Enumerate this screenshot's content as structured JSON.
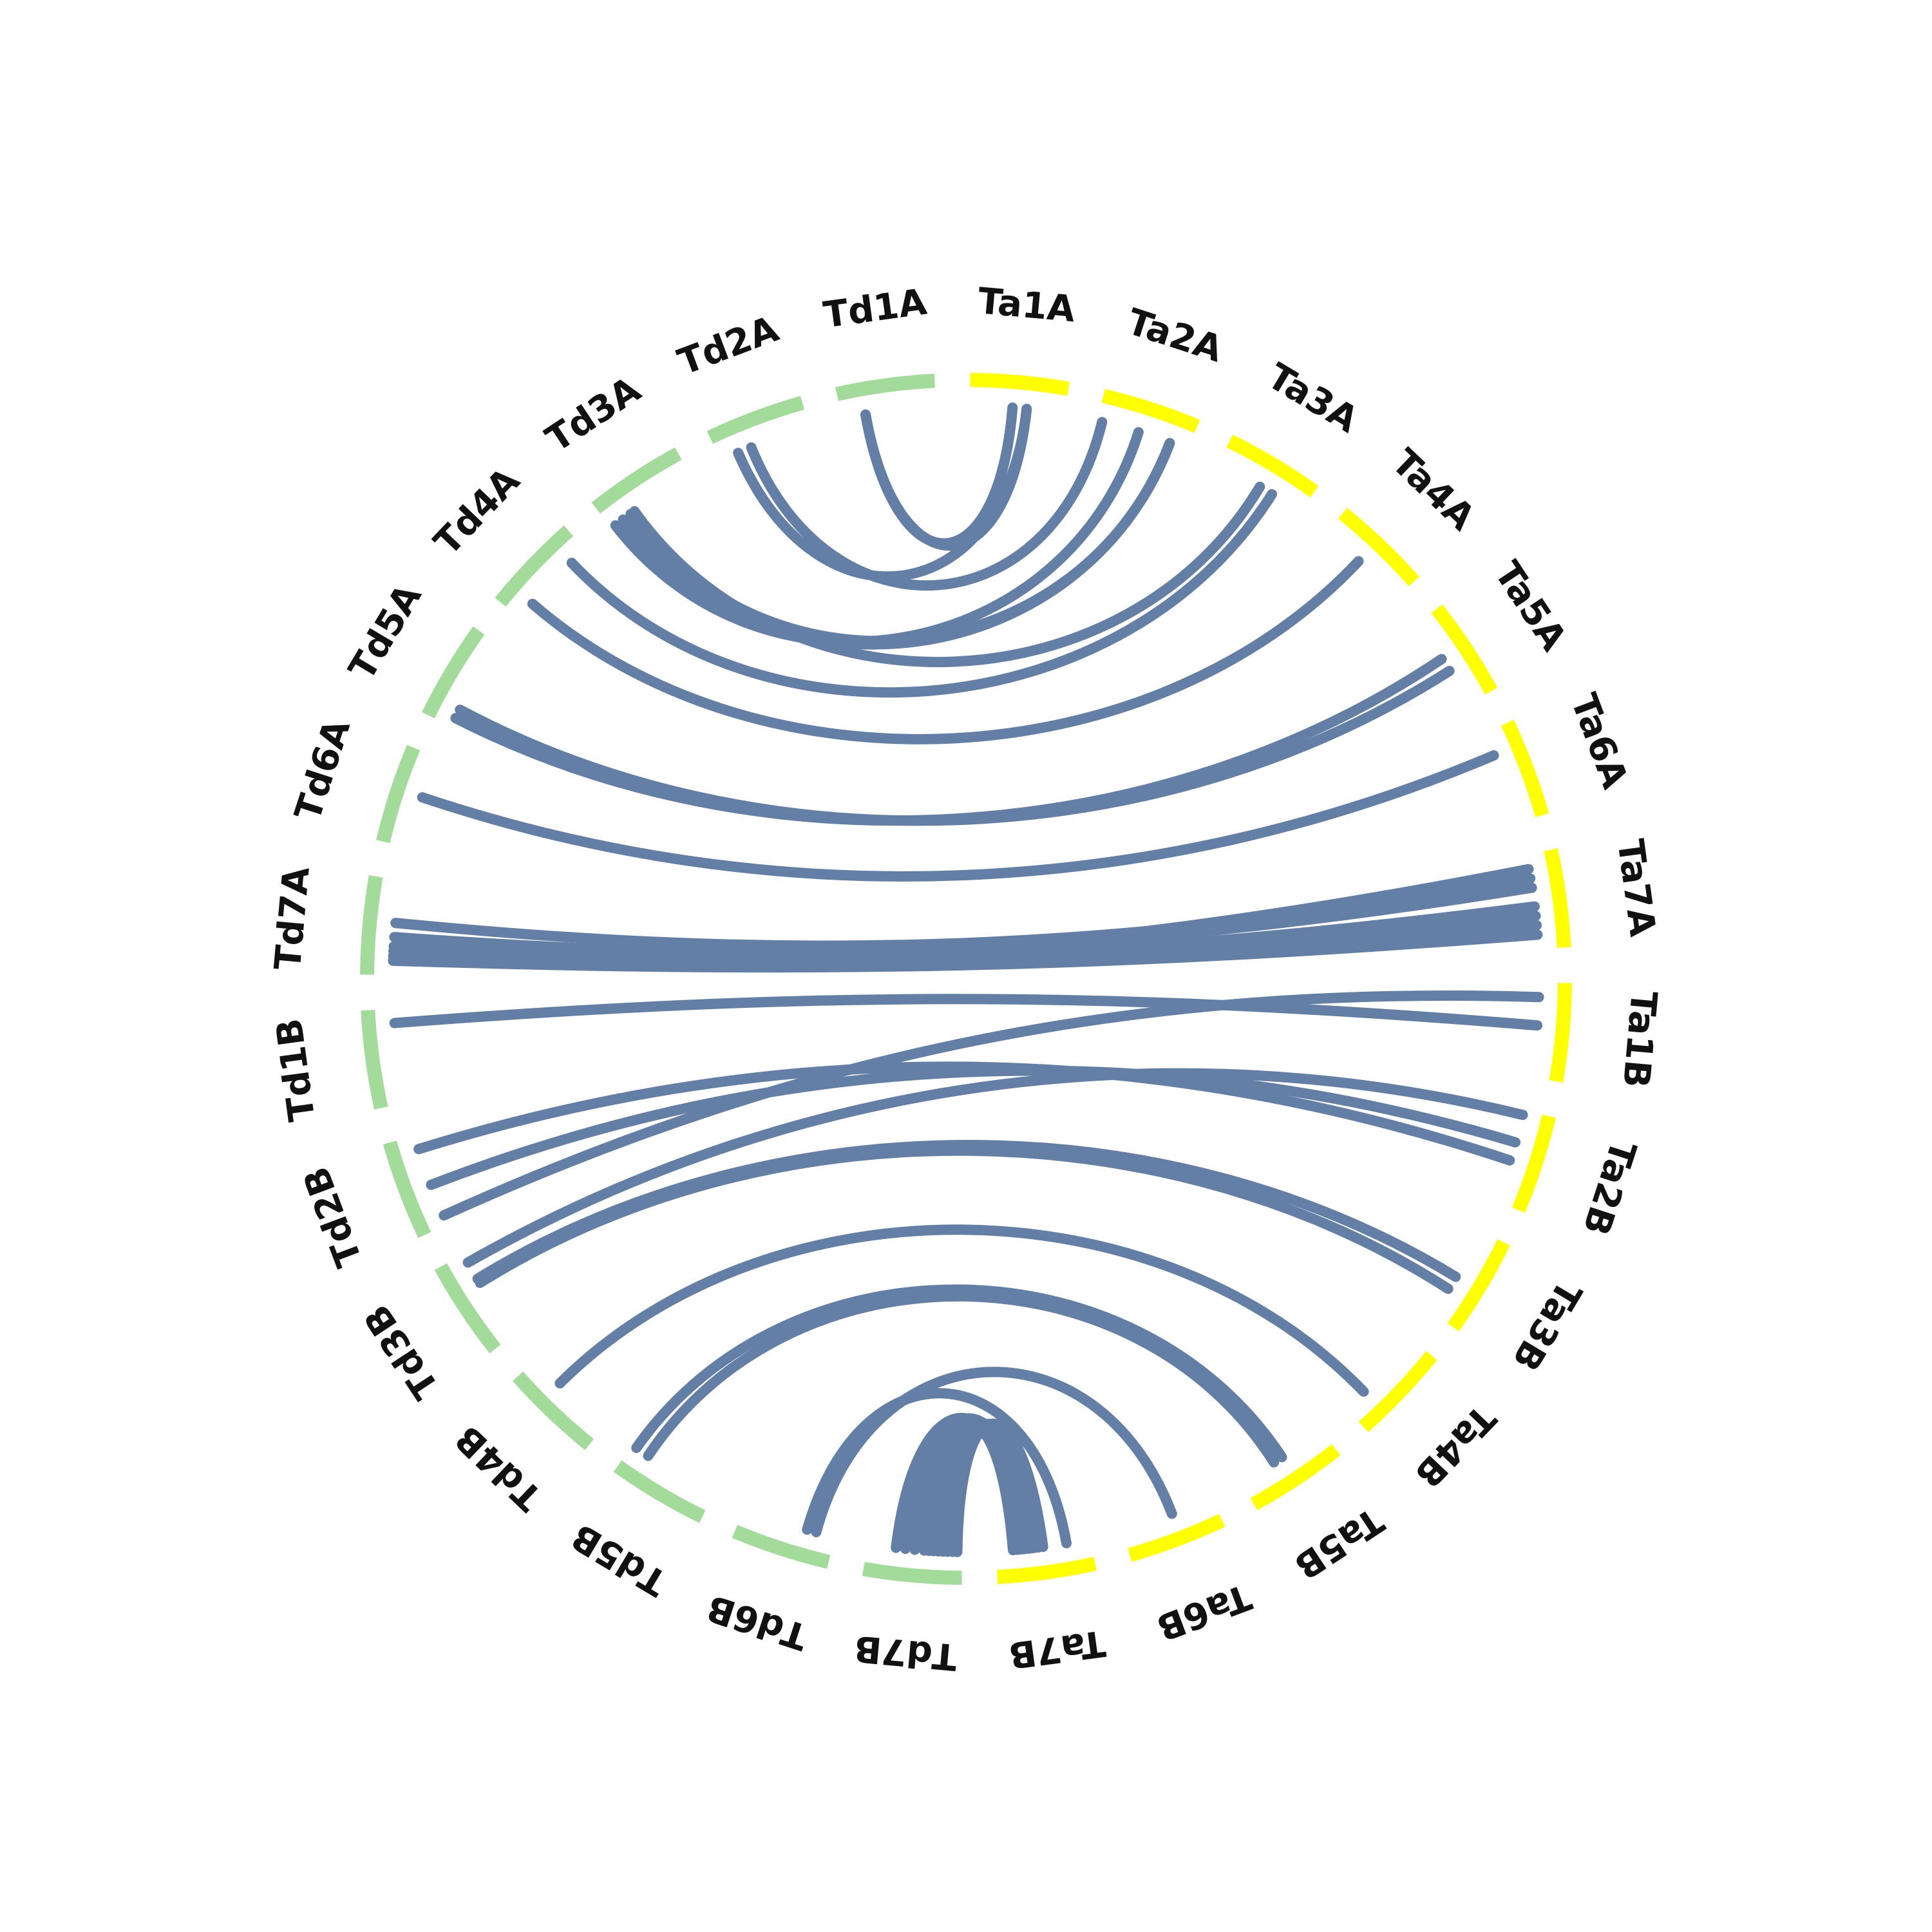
{
  "chart_data": {
    "type": "chord",
    "title": "",
    "colors": {
      "Td": "#a3db9a",
      "Ta": "#ffff00",
      "link": "#647fa6"
    },
    "chromosomes": [
      {
        "id": "Ta1A",
        "label": "Ta1A",
        "group": "Ta"
      },
      {
        "id": "Ta2A",
        "label": "Ta2A",
        "group": "Ta"
      },
      {
        "id": "Ta3A",
        "label": "Ta3A",
        "group": "Ta"
      },
      {
        "id": "Ta4A",
        "label": "Ta4A",
        "group": "Ta"
      },
      {
        "id": "Ta5A",
        "label": "Ta5A",
        "group": "Ta"
      },
      {
        "id": "Ta6A",
        "label": "Ta6A",
        "group": "Ta"
      },
      {
        "id": "Ta7A",
        "label": "Ta7A",
        "group": "Ta"
      },
      {
        "id": "Ta1B",
        "label": "Ta1B",
        "group": "Ta"
      },
      {
        "id": "Ta2B",
        "label": "Ta2B",
        "group": "Ta"
      },
      {
        "id": "Ta3B",
        "label": "Ta3B",
        "group": "Ta"
      },
      {
        "id": "Ta4B",
        "label": "Ta4B",
        "group": "Ta"
      },
      {
        "id": "Ta5B",
        "label": "Ta5B",
        "group": "Ta"
      },
      {
        "id": "Ta6B",
        "label": "Ta6B",
        "group": "Ta"
      },
      {
        "id": "Ta7B",
        "label": "Ta7B",
        "group": "Ta"
      },
      {
        "id": "Td7B",
        "label": "Td7B",
        "group": "Td"
      },
      {
        "id": "Td6B",
        "label": "Td6B",
        "group": "Td"
      },
      {
        "id": "Td5B",
        "label": "Td5B",
        "group": "Td"
      },
      {
        "id": "Td4B",
        "label": "Td4B",
        "group": "Td"
      },
      {
        "id": "Td3B",
        "label": "Td3B",
        "group": "Td"
      },
      {
        "id": "Td2B",
        "label": "Td2B",
        "group": "Td"
      },
      {
        "id": "Td1B",
        "label": "Td1B",
        "group": "Td"
      },
      {
        "id": "Td7A",
        "label": "Td7A",
        "group": "Td"
      },
      {
        "id": "Td6A",
        "label": "Td6A",
        "group": "Td"
      },
      {
        "id": "Td5A",
        "label": "Td5A",
        "group": "Td"
      },
      {
        "id": "Td4A",
        "label": "Td4A",
        "group": "Td"
      },
      {
        "id": "Td3A",
        "label": "Td3A",
        "group": "Td"
      },
      {
        "id": "Td2A",
        "label": "Td2A",
        "group": "Td"
      },
      {
        "id": "Td1A",
        "label": "Td1A",
        "group": "Td"
      }
    ],
    "links": [
      {
        "a": [
          "Td1A",
          0.25
        ],
        "b": [
          "Ta1A",
          0.45
        ]
      },
      {
        "a": [
          "Td1A",
          0.25
        ],
        "b": [
          "Ta1A",
          0.6
        ]
      },
      {
        "a": [
          "Td2A",
          0.2
        ],
        "b": [
          "Ta1A",
          0.6
        ]
      },
      {
        "a": [
          "Td2A",
          0.35
        ],
        "b": [
          "Ta2A",
          0.05
        ]
      },
      {
        "a": [
          "Td3A",
          0.05
        ],
        "b": [
          "Ta2A",
          0.45
        ]
      },
      {
        "a": [
          "Td3A",
          0.15
        ],
        "b": [
          "Ta2A",
          0.8
        ]
      },
      {
        "a": [
          "Td3A",
          0.25
        ],
        "b": [
          "Ta2A",
          0.8
        ]
      },
      {
        "a": [
          "Td3A",
          0.3
        ],
        "b": [
          "Ta3A",
          0.5
        ]
      },
      {
        "a": [
          "Td4A",
          0.2
        ],
        "b": [
          "Ta4A",
          0.45
        ]
      },
      {
        "a": [
          "Td4A",
          0.8
        ],
        "b": [
          "Ta3A",
          0.65
        ]
      },
      {
        "a": [
          "Td5A",
          0.1
        ],
        "b": [
          "Ta5A",
          0.45
        ]
      },
      {
        "a": [
          "Td5A",
          0.2
        ],
        "b": [
          "Ta5A",
          0.6
        ]
      },
      {
        "a": [
          "Td6A",
          0.55
        ],
        "b": [
          "Ta6A",
          0.25
        ]
      },
      {
        "a": [
          "Td7A",
          0.15
        ],
        "b": [
          "Ta7A",
          0.85
        ]
      },
      {
        "a": [
          "Td7A",
          0.2
        ],
        "b": [
          "Ta7A",
          0.75
        ]
      },
      {
        "a": [
          "Td7A",
          0.25
        ],
        "b": [
          "Ta7A",
          0.65
        ]
      },
      {
        "a": [
          "Td7A",
          0.3
        ],
        "b": [
          "Ta7A",
          0.55
        ]
      },
      {
        "a": [
          "Td7A",
          0.4
        ],
        "b": [
          "Ta7A",
          0.35
        ]
      },
      {
        "a": [
          "Td7A",
          0.55
        ],
        "b": [
          "Ta7A",
          0.25
        ]
      },
      {
        "a": [
          "Td7A",
          0.15
        ],
        "b": [
          "Ta7A",
          0.15
        ]
      },
      {
        "a": [
          "Td1B",
          0.85
        ],
        "b": [
          "Ta1B",
          0.45
        ]
      },
      {
        "a": [
          "Td2B",
          0.85
        ],
        "b": [
          "Ta2B",
          0.55
        ]
      },
      {
        "a": [
          "Td2B",
          0.45
        ],
        "b": [
          "Ta2B",
          0.35
        ]
      },
      {
        "a": [
          "Td2B",
          0.1
        ],
        "b": [
          "Ta1B",
          0.15
        ]
      },
      {
        "a": [
          "Td3B",
          0.9
        ],
        "b": [
          "Ta2B",
          0.05
        ]
      },
      {
        "a": [
          "Td3B",
          0.7
        ],
        "b": [
          "Ta3B",
          0.55
        ]
      },
      {
        "a": [
          "Td3B",
          0.65
        ],
        "b": [
          "Ta3B",
          0.7
        ]
      },
      {
        "a": [
          "Td4B",
          0.65
        ],
        "b": [
          "Ta4B",
          0.75
        ]
      },
      {
        "a": [
          "Td5B",
          0.8
        ],
        "b": [
          "Ta5B",
          0.6
        ]
      },
      {
        "a": [
          "Td5B",
          0.95
        ],
        "b": [
          "Ta5B",
          0.5
        ]
      },
      {
        "a": [
          "Td6B",
          0.2
        ],
        "b": [
          "Ta6B",
          0.45
        ]
      },
      {
        "a": [
          "Td6B",
          0.3
        ],
        "b": [
          "Ta7B",
          0.25
        ]
      },
      {
        "a": [
          "Td7B",
          0.7
        ],
        "b": [
          "Ta7B",
          0.7
        ]
      },
      {
        "a": [
          "Td7B",
          0.6
        ],
        "b": [
          "Ta7B",
          0.62
        ]
      },
      {
        "a": [
          "Td7B",
          0.5
        ],
        "b": [
          "Ta7B",
          0.66
        ]
      },
      {
        "a": [
          "Td7B",
          0.4
        ],
        "b": [
          "Ta7B",
          0.72
        ]
      },
      {
        "a": [
          "Td7B",
          0.35
        ],
        "b": [
          "Ta7B",
          0.78
        ]
      },
      {
        "a": [
          "Td7B",
          0.3
        ],
        "b": [
          "Ta7B",
          0.82
        ]
      },
      {
        "a": [
          "Td7B",
          0.25
        ],
        "b": [
          "Ta7B",
          0.75
        ]
      },
      {
        "a": [
          "Td7B",
          0.2
        ],
        "b": [
          "Ta7B",
          0.65
        ]
      },
      {
        "a": [
          "Td7B",
          0.15
        ],
        "b": [
          "Ta7B",
          0.6
        ]
      },
      {
        "a": [
          "Td7B",
          0.1
        ],
        "b": [
          "Ta7B",
          0.55
        ]
      },
      {
        "a": [
          "Td7B",
          0.05
        ],
        "b": [
          "Ta7B",
          0.5
        ]
      }
    ]
  }
}
